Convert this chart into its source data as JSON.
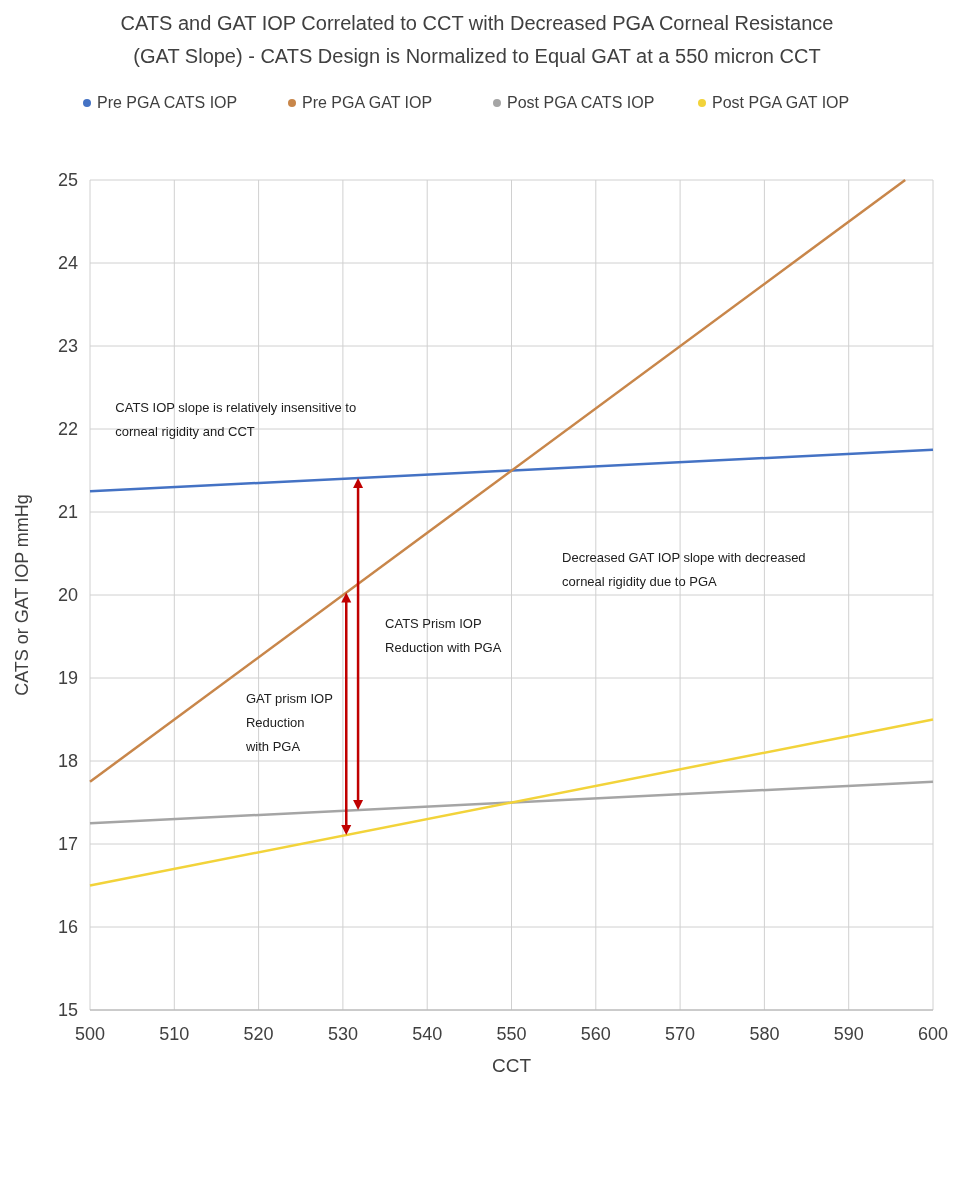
{
  "chart_data": {
    "type": "line",
    "title": "CATS and GAT IOP Correlated to CCT with Decreased PGA Corneal Resistance\n(GAT Slope) - CATS Design is Normalized to Equal GAT at a 550 micron CCT",
    "xlabel": "CCT",
    "ylabel": "CATS or GAT IOP mmHg",
    "series": [
      {
        "name": "Pre PGA CATS IOP",
        "color": "#4472c4",
        "x": [
          500,
          600
        ],
        "values": [
          21.25,
          21.75
        ]
      },
      {
        "name": "Pre PGA GAT IOP",
        "color": "#c8864a",
        "x": [
          500,
          596.7
        ],
        "values": [
          17.75,
          25
        ]
      },
      {
        "name": "Post PGA CATS IOP",
        "color": "#a5a5a5",
        "x": [
          500,
          600
        ],
        "values": [
          17.25,
          17.75
        ]
      },
      {
        "name": "Post PGA GAT IOP",
        "color": "#f2d33a",
        "x": [
          500,
          600
        ],
        "values": [
          16.5,
          18.5
        ]
      }
    ],
    "xlim": [
      500,
      600
    ],
    "xticks": [
      500,
      510,
      520,
      530,
      540,
      550,
      560,
      570,
      580,
      590,
      600
    ],
    "ylim": [
      15,
      25
    ],
    "yticks": [
      15,
      16,
      17,
      18,
      19,
      20,
      21,
      22,
      23,
      24,
      25
    ],
    "grid": true,
    "legend": "top",
    "marker": "none",
    "line_style": "solid",
    "annotations": [
      "CATS IOP slope is relatively insensitive to\ncorneal rigidity and CCT",
      "Decreased GAT IOP slope with decreased\ncorneal rigidity due to PGA",
      "CATS Prism IOP\nReduction with PGA",
      "GAT prism IOP\nReduction\nwith PGA"
    ]
  }
}
